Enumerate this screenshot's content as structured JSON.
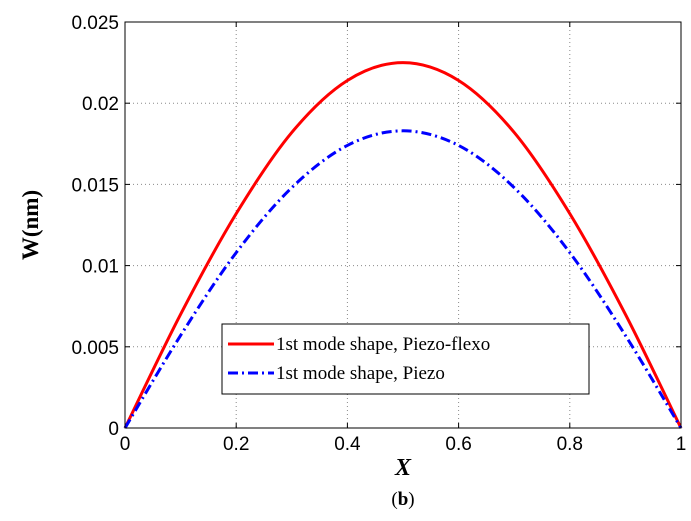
{
  "chart_data": {
    "type": "line",
    "xlabel": "X",
    "ylabel": "W(nm)",
    "xlim": [
      0,
      1
    ],
    "ylim": [
      0,
      0.025
    ],
    "x_ticks": [
      "0",
      "0.2",
      "0.4",
      "0.6",
      "0.8",
      "1"
    ],
    "y_ticks": [
      "0",
      "0.005",
      "0.01",
      "0.015",
      "0.02",
      "0.025"
    ],
    "grid": true,
    "legend_position": "bottom-center",
    "series": [
      {
        "name": "1st mode shape, Piezo-flexo",
        "color": "#ff0000",
        "style": "solid",
        "x": [
          0,
          0.1,
          0.2,
          0.3,
          0.4,
          0.5,
          0.6,
          0.7,
          0.8,
          0.9,
          1
        ],
        "y": [
          0,
          0.007,
          0.0132,
          0.0182,
          0.0214,
          0.0225,
          0.0214,
          0.0182,
          0.0132,
          0.007,
          0
        ]
      },
      {
        "name": "1st mode shape, Piezo",
        "color": "#0000ff",
        "style": "dashdot",
        "x": [
          0,
          0.1,
          0.2,
          0.3,
          0.4,
          0.5,
          0.6,
          0.7,
          0.8,
          0.9,
          1
        ],
        "y": [
          0,
          0.0057,
          0.0108,
          0.0148,
          0.0174,
          0.0183,
          0.0174,
          0.0148,
          0.0108,
          0.0057,
          0
        ]
      }
    ]
  },
  "caption": {
    "open": "(",
    "letter": "b",
    "close": ")"
  }
}
